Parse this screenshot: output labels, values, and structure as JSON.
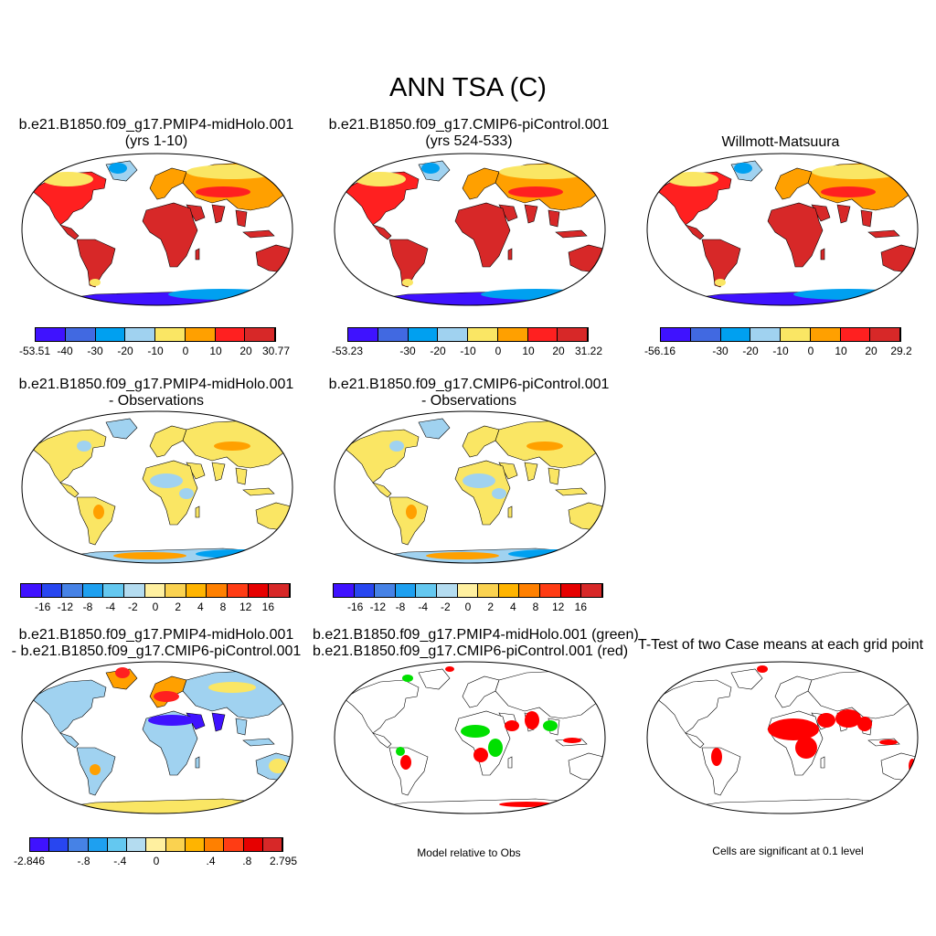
{
  "title": "ANN TSA (C)",
  "panels": {
    "p1": {
      "line1": "b.e21.B1850.f09_g17.PMIP4-midHolo.001",
      "line2": "(yrs 1-10)"
    },
    "p2": {
      "line1": "b.e21.B1850.f09_g17.CMIP6-piControl.001",
      "line2": "(yrs 524-533)"
    },
    "p3": {
      "line1": "Willmott-Matsuura"
    },
    "p4": {
      "line1": "b.e21.B1850.f09_g17.PMIP4-midHolo.001",
      "line2": "- Observations"
    },
    "p5": {
      "line1": "b.e21.B1850.f09_g17.CMIP6-piControl.001",
      "line2": "- Observations"
    },
    "p6": {
      "line1": "b.e21.B1850.f09_g17.PMIP4-midHolo.001",
      "line2": "- b.e21.B1850.f09_g17.CMIP6-piControl.001"
    },
    "p7": {
      "line1": "b.e21.B1850.f09_g17.PMIP4-midHolo.001 (green)",
      "line2": "b.e21.B1850.f09_g17.CMIP6-piControl.001 (red)"
    },
    "p8": {
      "line1": "T-Test of two Case means at each grid point"
    }
  },
  "colorbars": {
    "cb1": {
      "colors": [
        "#3f12ff",
        "#4169e1",
        "#00a0f0",
        "#a0d2f0",
        "#fae664",
        "#ffa000",
        "#ff2020",
        "#d72828"
      ],
      "labels": [
        "-53.51",
        "-40",
        "-30",
        "-20",
        "-10",
        "0",
        "10",
        "20",
        "30.77"
      ]
    },
    "cb2": {
      "colors": [
        "#3f12ff",
        "#4169e1",
        "#00a0f0",
        "#a0d2f0",
        "#fae664",
        "#ffa000",
        "#ff2020",
        "#d72828"
      ],
      "labels": [
        "-53.23",
        "",
        "-30",
        "-20",
        "-10",
        "0",
        "10",
        "20",
        "31.22"
      ]
    },
    "cb3": {
      "colors": [
        "#3f12ff",
        "#4169e1",
        "#00a0f0",
        "#a0d2f0",
        "#fae664",
        "#ffa000",
        "#ff2020",
        "#d72828"
      ],
      "labels": [
        "-56.16",
        "",
        "-30",
        "-20",
        "-10",
        "0",
        "10",
        "20",
        "29.2"
      ]
    },
    "cb4": {
      "colors": [
        "#3f12ff",
        "#2846f0",
        "#4682e6",
        "#1ea0f0",
        "#64c8f0",
        "#b4dcf0",
        "#fff0a0",
        "#fad250",
        "#ffb400",
        "#ff8000",
        "#ff3c14",
        "#e60000",
        "#d72828"
      ],
      "labels": [
        "",
        "-16",
        "-12",
        "-8",
        "-4",
        "-2",
        "0",
        "2",
        "4",
        "8",
        "12",
        "16",
        ""
      ]
    },
    "cb5": {
      "colors": [
        "#3f12ff",
        "#2846f0",
        "#4682e6",
        "#1ea0f0",
        "#64c8f0",
        "#b4dcf0",
        "#fff0a0",
        "#fad250",
        "#ffb400",
        "#ff8000",
        "#ff3c14",
        "#e60000",
        "#d72828"
      ],
      "labels": [
        "",
        "-16",
        "-12",
        "-8",
        "-4",
        "-2",
        "0",
        "2",
        "4",
        "8",
        "12",
        "16",
        ""
      ]
    },
    "cb6": {
      "colors": [
        "#3f12ff",
        "#2846f0",
        "#4682e6",
        "#1ea0f0",
        "#64c8f0",
        "#b4dcf0",
        "#fff0a0",
        "#fad250",
        "#ffb400",
        "#ff8000",
        "#ff3c14",
        "#e60000",
        "#d72828"
      ],
      "labels": [
        "-2.846",
        "",
        "",
        "-.8",
        "",
        "-.4",
        "",
        "0",
        "",
        "",
        ".4",
        "",
        ".8",
        "",
        "2.795"
      ]
    }
  },
  "notes": {
    "model_relative": "Model relative to Obs",
    "significance": "Cells are significant at 0.1 level"
  },
  "colors": {
    "warm": "#d72828",
    "hot": "#ff2020",
    "orange": "#ffa000",
    "yellow": "#fae664",
    "lightblue": "#a0d2f0",
    "blue": "#00a0f0",
    "deepblue": "#3f12ff",
    "green": "#00e000",
    "red": "#ff0000"
  }
}
